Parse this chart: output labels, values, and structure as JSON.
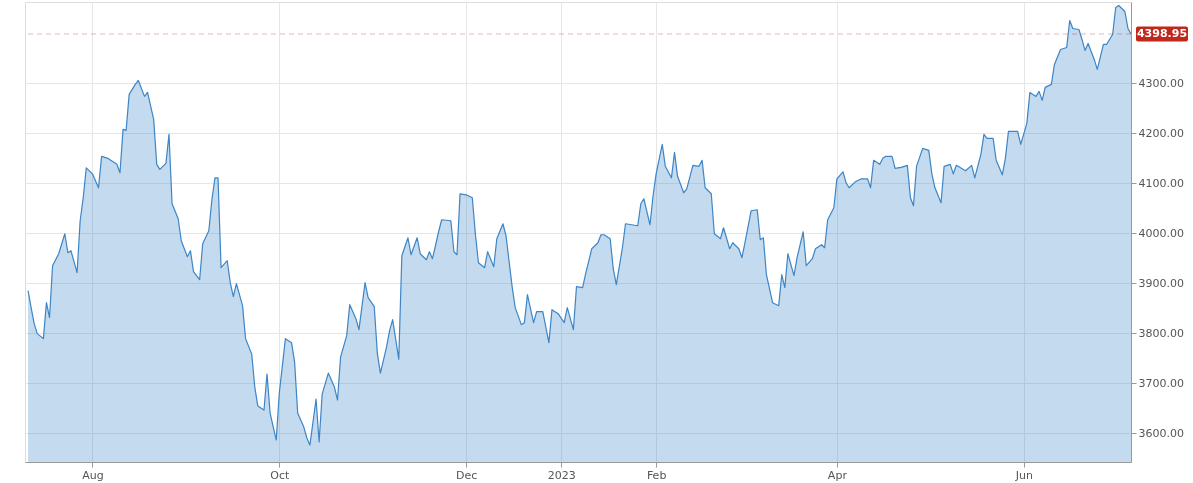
{
  "chart_data": {
    "type": "area",
    "x": [
      "2022-07-11",
      "2022-07-12",
      "2022-07-13",
      "2022-07-14",
      "2022-07-16",
      "2022-07-17",
      "2022-07-18",
      "2022-07-19",
      "2022-07-21",
      "2022-07-23",
      "2022-07-24",
      "2022-07-25",
      "2022-07-27",
      "2022-07-28",
      "2022-07-29",
      "2022-07-30",
      "2022-08-01",
      "2022-08-03",
      "2022-08-04",
      "2022-08-06",
      "2022-08-09",
      "2022-08-10",
      "2022-08-11",
      "2022-08-12",
      "2022-08-13",
      "2022-08-15",
      "2022-08-16",
      "2022-08-18",
      "2022-08-19",
      "2022-08-21",
      "2022-08-22",
      "2022-08-23",
      "2022-08-25",
      "2022-08-26",
      "2022-08-27",
      "2022-08-29",
      "2022-08-30",
      "2022-09-01",
      "2022-09-02",
      "2022-09-03",
      "2022-09-05",
      "2022-09-06",
      "2022-09-08",
      "2022-09-09",
      "2022-09-10",
      "2022-09-11",
      "2022-09-12",
      "2022-09-14",
      "2022-09-15",
      "2022-09-16",
      "2022-09-17",
      "2022-09-19",
      "2022-09-20",
      "2022-09-22",
      "2022-09-23",
      "2022-09-24",
      "2022-09-26",
      "2022-09-27",
      "2022-09-28",
      "2022-09-30",
      "2022-10-01",
      "2022-10-03",
      "2022-10-05",
      "2022-10-06",
      "2022-10-07",
      "2022-10-09",
      "2022-10-10",
      "2022-10-11",
      "2022-10-13",
      "2022-10-14",
      "2022-10-15",
      "2022-10-17",
      "2022-10-19",
      "2022-10-20",
      "2022-10-21",
      "2022-10-23",
      "2022-10-24",
      "2022-10-26",
      "2022-10-27",
      "2022-10-29",
      "2022-10-30",
      "2022-11-01",
      "2022-11-02",
      "2022-11-03",
      "2022-11-05",
      "2022-11-06",
      "2022-11-07",
      "2022-11-09",
      "2022-11-10",
      "2022-11-12",
      "2022-11-13",
      "2022-11-15",
      "2022-11-16",
      "2022-11-18",
      "2022-11-19",
      "2022-11-20",
      "2022-11-22",
      "2022-11-23",
      "2022-11-26",
      "2022-11-27",
      "2022-11-28",
      "2022-11-29",
      "2022-12-01",
      "2022-12-03",
      "2022-12-04",
      "2022-12-05",
      "2022-12-07",
      "2022-12-08",
      "2022-12-10",
      "2022-12-11",
      "2022-12-13",
      "2022-12-14",
      "2022-12-16",
      "2022-12-17",
      "2022-12-19",
      "2022-12-20",
      "2022-12-21",
      "2022-12-23",
      "2022-12-24",
      "2022-12-26",
      "2022-12-28",
      "2022-12-29",
      "2022-12-31",
      "2023-01-02",
      "2023-01-03",
      "2023-01-05",
      "2023-01-06",
      "2023-01-08",
      "2023-01-09",
      "2023-01-11",
      "2023-01-13",
      "2023-01-14",
      "2023-01-15",
      "2023-01-17",
      "2023-01-18",
      "2023-01-19",
      "2023-01-21",
      "2023-01-22",
      "2023-01-26",
      "2023-01-27",
      "2023-01-28",
      "2023-01-30",
      "2023-01-31",
      "2023-02-01",
      "2023-02-03",
      "2023-02-04",
      "2023-02-06",
      "2023-02-07",
      "2023-02-08",
      "2023-02-10",
      "2023-02-11",
      "2023-02-13",
      "2023-02-15",
      "2023-02-16",
      "2023-02-17",
      "2023-02-19",
      "2023-02-20",
      "2023-02-22",
      "2023-02-23",
      "2023-02-25",
      "2023-02-26",
      "2023-02-28",
      "2023-03-01",
      "2023-03-02",
      "2023-03-04",
      "2023-03-06",
      "2023-03-07",
      "2023-03-08",
      "2023-03-09",
      "2023-03-11",
      "2023-03-13",
      "2023-03-14",
      "2023-03-15",
      "2023-03-16",
      "2023-03-18",
      "2023-03-19",
      "2023-03-21",
      "2023-03-22",
      "2023-03-24",
      "2023-03-25",
      "2023-03-27",
      "2023-03-28",
      "2023-03-29",
      "2023-03-31",
      "2023-04-01",
      "2023-04-03",
      "2023-04-04",
      "2023-04-05",
      "2023-04-07",
      "2023-04-09",
      "2023-04-11",
      "2023-04-12",
      "2023-04-13",
      "2023-04-15",
      "2023-04-16",
      "2023-04-17",
      "2023-04-19",
      "2023-04-20",
      "2023-04-22",
      "2023-04-24",
      "2023-04-25",
      "2023-04-26",
      "2023-04-27",
      "2023-04-29",
      "2023-05-01",
      "2023-05-02",
      "2023-05-03",
      "2023-05-05",
      "2023-05-06",
      "2023-05-08",
      "2023-05-09",
      "2023-05-10",
      "2023-05-13",
      "2023-05-15",
      "2023-05-16",
      "2023-05-18",
      "2023-05-19",
      "2023-05-20",
      "2023-05-22",
      "2023-05-23",
      "2023-05-25",
      "2023-05-26",
      "2023-05-27",
      "2023-05-30",
      "2023-05-31",
      "2023-06-02",
      "2023-06-03",
      "2023-06-05",
      "2023-06-06",
      "2023-06-07",
      "2023-06-08",
      "2023-06-10",
      "2023-06-11",
      "2023-06-13",
      "2023-06-15",
      "2023-06-16",
      "2023-06-17",
      "2023-06-19",
      "2023-06-20",
      "2023-06-21",
      "2023-06-22",
      "2023-06-24",
      "2023-06-25",
      "2023-06-27",
      "2023-06-28",
      "2023-06-30",
      "2023-07-01",
      "2023-07-02",
      "2023-07-04",
      "2023-07-05",
      "2023-07-06"
    ],
    "series": [
      {
        "color": "#3d85c6",
        "values": [
          3885,
          3851,
          3819,
          3799,
          3789,
          3861,
          3831,
          3935,
          3959,
          3999,
          3961,
          3965,
          3921,
          4025,
          4071,
          4131,
          4119,
          4091,
          4154,
          4150,
          4138,
          4121,
          4208,
          4206,
          4278,
          4298,
          4306,
          4274,
          4282,
          4228,
          4138,
          4128,
          4140,
          4198,
          4059,
          4029,
          3985,
          3953,
          3965,
          3923,
          3907,
          3979,
          4005,
          4067,
          4111,
          4111,
          3931,
          3945,
          3901,
          3873,
          3899,
          3855,
          3789,
          3758,
          3692,
          3654,
          3646,
          3718,
          3640,
          3586,
          3680,
          3789,
          3781,
          3742,
          3640,
          3612,
          3590,
          3576,
          3668,
          3582,
          3678,
          3720,
          3692,
          3666,
          3752,
          3795,
          3857,
          3829,
          3807,
          3901,
          3871,
          3853,
          3760,
          3720,
          3772,
          3805,
          3827,
          3748,
          3955,
          3991,
          3957,
          3991,
          3959,
          3947,
          3963,
          3949,
          4003,
          4027,
          4025,
          3963,
          3957,
          4079,
          4077,
          4071,
          3999,
          3941,
          3931,
          3963,
          3933,
          3989,
          4019,
          3995,
          3893,
          3851,
          3817,
          3821,
          3877,
          3821,
          3843,
          3843,
          3781,
          3847,
          3839,
          3821,
          3851,
          3807,
          3893,
          3891,
          3919,
          3969,
          3981,
          3997,
          3997,
          3989,
          3929,
          3897,
          3971,
          4019,
          4015,
          4059,
          4069,
          4017,
          4075,
          4119,
          4178,
          4134,
          4111,
          4162,
          4114,
          4081,
          4089,
          4136,
          4134,
          4146,
          4091,
          4079,
          3999,
          3989,
          4011,
          3969,
          3981,
          3969,
          3951,
          3981,
          4045,
          4047,
          3987,
          3991,
          3917,
          3861,
          3855,
          3917,
          3891,
          3959,
          3915,
          3951,
          4003,
          3935,
          3949,
          3969,
          3977,
          3971,
          4027,
          4051,
          4109,
          4123,
          4101,
          4091,
          4103,
          4109,
          4109,
          4091,
          4146,
          4138,
          4150,
          4154,
          4154,
          4130,
          4132,
          4136,
          4071,
          4055,
          4134,
          4170,
          4166,
          4119,
          4091,
          4061,
          4134,
          4138,
          4119,
          4136,
          4125,
          4136,
          4111,
          4158,
          4198,
          4190,
          4190,
          4146,
          4117,
          4150,
          4204,
          4204,
          4178,
          4220,
          4282,
          4274,
          4284,
          4266,
          4292,
          4298,
          4338,
          4368,
          4372,
          4426,
          4410,
          4408,
          4388,
          4366,
          4380,
          4348,
          4328,
          4378,
          4378,
          4398,
          4452,
          4456,
          4444,
          4410,
          4399
        ]
      }
    ],
    "xlim": [
      "2022-07-10",
      "2023-07-06"
    ],
    "xticks": [
      {
        "value": "2022-08-01",
        "label": "Aug"
      },
      {
        "value": "2022-10-01",
        "label": "Oct"
      },
      {
        "value": "2022-12-01",
        "label": "Dec"
      },
      {
        "value": "2023-01-01",
        "label": "2023"
      },
      {
        "value": "2023-02-01",
        "label": "Feb"
      },
      {
        "value": "2023-04-01",
        "label": "Apr"
      },
      {
        "value": "2023-06-01",
        "label": "Jun"
      }
    ],
    "ylim": [
      3542,
      4463
    ],
    "yticks": [
      {
        "value": 3600,
        "label": "3600.00"
      },
      {
        "value": 3700,
        "label": "3700.00"
      },
      {
        "value": 3800,
        "label": "3800.00"
      },
      {
        "value": 3900,
        "label": "3900.00"
      },
      {
        "value": 4000,
        "label": "4000.00"
      },
      {
        "value": 4100,
        "label": "4100.00"
      },
      {
        "value": 4200,
        "label": "4200.00"
      },
      {
        "value": 4300,
        "label": "4300.00"
      }
    ],
    "ref_lines": [
      {
        "axis": "y",
        "value": 4398.95,
        "label": "4398.95",
        "color": "#c0281b",
        "line_style": "dashed"
      }
    ],
    "grid": true
  }
}
